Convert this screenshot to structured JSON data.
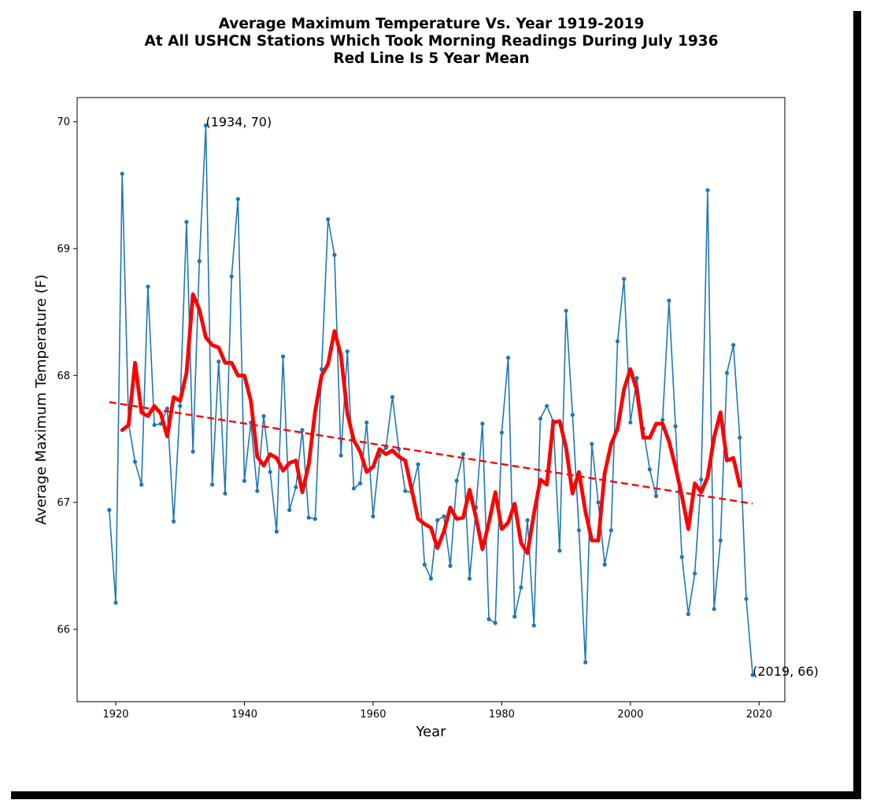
{
  "chart_data": {
    "type": "line",
    "title_lines": [
      "Average Maximum Temperature Vs. Year 1919-2019",
      "At All USHCN Stations Which Took Morning Readings During July 1936",
      "Red Line Is 5 Year Mean"
    ],
    "xlabel": "Year",
    "ylabel": "Average Maximum Temperature (F)",
    "xlim": [
      1914,
      2024
    ],
    "ylim": [
      65.43,
      70.19
    ],
    "xticks": [
      1920,
      1940,
      1960,
      1980,
      2000,
      2020
    ],
    "yticks": [
      66,
      67,
      68,
      69,
      70
    ],
    "grid": false,
    "series": [
      {
        "style": "line-with-dots",
        "color": "#1f77b4",
        "x": [
          1919,
          1920,
          1921,
          1922,
          1923,
          1924,
          1925,
          1926,
          1927,
          1928,
          1929,
          1930,
          1931,
          1932,
          1933,
          1934,
          1935,
          1936,
          1937,
          1938,
          1939,
          1940,
          1941,
          1942,
          1943,
          1944,
          1945,
          1946,
          1947,
          1948,
          1949,
          1950,
          1951,
          1952,
          1953,
          1954,
          1955,
          1956,
          1957,
          1958,
          1959,
          1960,
          1961,
          1962,
          1963,
          1964,
          1965,
          1966,
          1967,
          1968,
          1969,
          1970,
          1971,
          1972,
          1973,
          1974,
          1975,
          1976,
          1977,
          1978,
          1979,
          1980,
          1981,
          1982,
          1983,
          1984,
          1985,
          1986,
          1987,
          1988,
          1989,
          1990,
          1991,
          1992,
          1993,
          1994,
          1995,
          1996,
          1997,
          1998,
          1999,
          2000,
          2001,
          2002,
          2003,
          2004,
          2005,
          2006,
          2007,
          2008,
          2009,
          2010,
          2011,
          2012,
          2013,
          2014,
          2015,
          2016,
          2017,
          2018,
          2019
        ],
        "y": [
          66.94,
          66.21,
          69.59,
          67.62,
          67.32,
          67.14,
          68.7,
          67.61,
          67.62,
          67.74,
          66.85,
          67.76,
          69.21,
          67.4,
          68.9,
          69.97,
          67.14,
          68.11,
          67.07,
          68.78,
          69.39,
          67.17,
          67.63,
          67.09,
          67.68,
          67.24,
          66.77,
          68.15,
          66.94,
          67.12,
          67.57,
          66.88,
          66.87,
          68.05,
          69.23,
          68.95,
          67.37,
          68.19,
          67.11,
          67.15,
          67.63,
          66.89,
          67.37,
          67.43,
          67.83,
          67.42,
          67.09,
          67.08,
          67.3,
          66.51,
          66.4,
          66.86,
          66.89,
          66.5,
          67.17,
          67.38,
          66.4,
          66.96,
          67.62,
          66.08,
          66.05,
          67.55,
          68.14,
          66.1,
          66.33,
          66.86,
          66.03,
          67.66,
          67.76,
          67.64,
          66.62,
          68.51,
          67.69,
          66.78,
          65.74,
          67.46,
          67.0,
          66.51,
          66.78,
          68.27,
          68.76,
          67.63,
          67.98,
          67.58,
          67.26,
          67.05,
          67.65,
          68.59,
          67.6,
          66.57,
          66.12,
          66.44,
          67.18,
          69.46,
          66.16,
          66.7,
          68.02,
          68.24,
          67.51,
          66.24,
          65.64
        ]
      },
      {
        "style": "thick-line",
        "color": "#ff0000",
        "x": [
          1921,
          1922,
          1923,
          1924,
          1925,
          1926,
          1927,
          1928,
          1929,
          1930,
          1931,
          1932,
          1933,
          1934,
          1935,
          1936,
          1937,
          1938,
          1939,
          1940,
          1941,
          1942,
          1943,
          1944,
          1945,
          1946,
          1947,
          1948,
          1949,
          1950,
          1951,
          1952,
          1953,
          1954,
          1955,
          1956,
          1957,
          1958,
          1959,
          1960,
          1961,
          1962,
          1963,
          1964,
          1965,
          1966,
          1967,
          1968,
          1969,
          1970,
          1971,
          1972,
          1973,
          1974,
          1975,
          1976,
          1977,
          1978,
          1979,
          1980,
          1981,
          1982,
          1983,
          1984,
          1985,
          1986,
          1987,
          1988,
          1989,
          1990,
          1991,
          1992,
          1993,
          1994,
          1995,
          1996,
          1997,
          1998,
          1999,
          2000,
          2001,
          2002,
          2003,
          2004,
          2005,
          2006,
          2007,
          2008,
          2009,
          2010,
          2011,
          2012,
          2013,
          2014,
          2015,
          2016,
          2017
        ],
        "y": [
          67.57,
          67.61,
          68.1,
          67.71,
          67.68,
          67.76,
          67.7,
          67.52,
          67.83,
          67.8,
          68.02,
          68.64,
          68.52,
          68.3,
          68.24,
          68.22,
          68.1,
          68.1,
          68.0,
          68.0,
          67.8,
          67.36,
          67.29,
          67.38,
          67.35,
          67.25,
          67.31,
          67.33,
          67.08,
          67.3,
          67.72,
          68.0,
          68.09,
          68.35,
          68.16,
          67.7,
          67.49,
          67.4,
          67.24,
          67.28,
          67.42,
          67.38,
          67.41,
          67.36,
          67.33,
          67.1,
          66.87,
          66.83,
          66.8,
          66.64,
          66.77,
          66.96,
          66.87,
          66.88,
          67.1,
          66.88,
          66.63,
          66.84,
          67.08,
          66.79,
          66.84,
          66.99,
          66.68,
          66.6,
          66.91,
          67.18,
          67.14,
          67.63,
          67.64,
          67.43,
          67.07,
          67.24,
          66.93,
          66.7,
          66.7,
          67.23,
          67.46,
          67.58,
          67.89,
          68.05,
          67.88,
          67.51,
          67.51,
          67.62,
          67.62,
          67.48,
          67.28,
          67.05,
          66.79,
          67.15,
          67.08,
          67.2,
          67.51,
          67.71,
          67.33,
          67.35,
          67.13
        ]
      },
      {
        "style": "dashed-line",
        "color": "#ff0000",
        "x": [
          1919,
          2019
        ],
        "y": [
          67.79,
          66.99
        ]
      }
    ],
    "annotations": [
      {
        "text": "(1934, 70)",
        "x": 1934,
        "y": 69.97
      },
      {
        "text": "(2019, 66)",
        "x": 2019,
        "y": 65.64
      }
    ]
  }
}
